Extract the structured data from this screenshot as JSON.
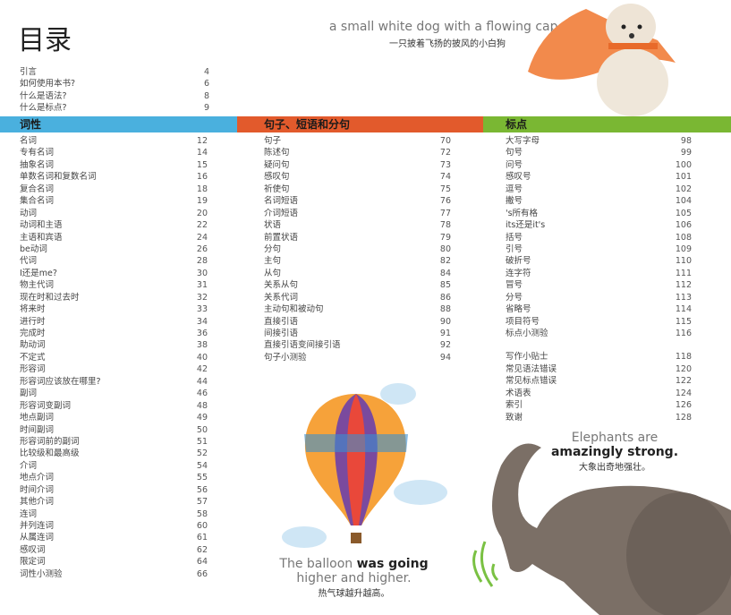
{
  "title": "目录",
  "intro": [
    {
      "t": "引言",
      "n": "4"
    },
    {
      "t": "如何使用本书?",
      "n": "6"
    },
    {
      "t": "什么是语法?",
      "n": "8"
    },
    {
      "t": "什么是标点?",
      "n": "9"
    }
  ],
  "sections": [
    {
      "heading": "词性",
      "color": "#4ab0de",
      "items": [
        {
          "t": "名词",
          "n": "12"
        },
        {
          "t": "专有名词",
          "n": "14"
        },
        {
          "t": "抽象名词",
          "n": "15"
        },
        {
          "t": "单数名词和复数名词",
          "n": "16"
        },
        {
          "t": "复合名词",
          "n": "18"
        },
        {
          "t": "集合名词",
          "n": "19"
        },
        {
          "t": "动词",
          "n": "20"
        },
        {
          "t": "动词和主语",
          "n": "22"
        },
        {
          "t": "主语和宾语",
          "n": "24"
        },
        {
          "t": "be动词",
          "n": "26"
        },
        {
          "t": "代词",
          "n": "28"
        },
        {
          "t": "I还是me?",
          "n": "30"
        },
        {
          "t": "物主代词",
          "n": "31"
        },
        {
          "t": "现在时和过去时",
          "n": "32"
        },
        {
          "t": "将来时",
          "n": "33"
        },
        {
          "t": "进行时",
          "n": "34"
        },
        {
          "t": "完成时",
          "n": "36"
        },
        {
          "t": "助动词",
          "n": "38"
        },
        {
          "t": "不定式",
          "n": "40"
        },
        {
          "t": "形容词",
          "n": "42"
        },
        {
          "t": "形容词应该放在哪里?",
          "n": "44"
        },
        {
          "t": "副词",
          "n": "46"
        },
        {
          "t": "形容词变副词",
          "n": "48"
        },
        {
          "t": "地点副词",
          "n": "49"
        },
        {
          "t": "时间副词",
          "n": "50"
        },
        {
          "t": "形容词前的副词",
          "n": "51"
        },
        {
          "t": "比较级和最高级",
          "n": "52"
        },
        {
          "t": "介词",
          "n": "54"
        },
        {
          "t": "地点介词",
          "n": "55"
        },
        {
          "t": "时间介词",
          "n": "56"
        },
        {
          "t": "其他介词",
          "n": "57"
        },
        {
          "t": "连词",
          "n": "58"
        },
        {
          "t": "并列连词",
          "n": "60"
        },
        {
          "t": "从属连词",
          "n": "61"
        },
        {
          "t": "感叹词",
          "n": "62"
        },
        {
          "t": "限定词",
          "n": "64"
        },
        {
          "t": "词性小测验",
          "n": "66"
        }
      ]
    },
    {
      "heading": "句子、短语和分句",
      "color": "#e25a2c",
      "items": [
        {
          "t": "句子",
          "n": "70"
        },
        {
          "t": "陈述句",
          "n": "72"
        },
        {
          "t": "疑问句",
          "n": "73"
        },
        {
          "t": "感叹句",
          "n": "74"
        },
        {
          "t": "祈使句",
          "n": "75"
        },
        {
          "t": "名词短语",
          "n": "76"
        },
        {
          "t": "介词短语",
          "n": "77"
        },
        {
          "t": "状语",
          "n": "78"
        },
        {
          "t": "前置状语",
          "n": "79"
        },
        {
          "t": "分句",
          "n": "80"
        },
        {
          "t": "主句",
          "n": "82"
        },
        {
          "t": "从句",
          "n": "84"
        },
        {
          "t": "关系从句",
          "n": "85"
        },
        {
          "t": "关系代词",
          "n": "86"
        },
        {
          "t": "主动句和被动句",
          "n": "88"
        },
        {
          "t": "直接引语",
          "n": "90"
        },
        {
          "t": "间接引语",
          "n": "91"
        },
        {
          "t": "直接引语变间接引语",
          "n": "92"
        },
        {
          "t": "句子小测验",
          "n": "94"
        }
      ]
    },
    {
      "heading": "标点",
      "color": "#7ab733",
      "items": [
        {
          "t": "大写字母",
          "n": "98"
        },
        {
          "t": "句号",
          "n": "99"
        },
        {
          "t": "问号",
          "n": "100"
        },
        {
          "t": "感叹号",
          "n": "101"
        },
        {
          "t": "逗号",
          "n": "102"
        },
        {
          "t": "撇号",
          "n": "104"
        },
        {
          "t": "'s所有格",
          "n": "105"
        },
        {
          "t": "its还是it's",
          "n": "106"
        },
        {
          "t": "括号",
          "n": "108"
        },
        {
          "t": "引号",
          "n": "109"
        },
        {
          "t": "破折号",
          "n": "110"
        },
        {
          "t": "连字符",
          "n": "111"
        },
        {
          "t": "冒号",
          "n": "112"
        },
        {
          "t": "分号",
          "n": "113"
        },
        {
          "t": "省略号",
          "n": "114"
        },
        {
          "t": "项目符号",
          "n": "115"
        },
        {
          "t": "标点小测验",
          "n": "116"
        }
      ],
      "extra": [
        {
          "t": "写作小贴士",
          "n": "118"
        },
        {
          "t": "常见语法错误",
          "n": "120"
        },
        {
          "t": "常见标点错误",
          "n": "122"
        },
        {
          "t": "术语表",
          "n": "124"
        },
        {
          "t": "索引",
          "n": "126"
        },
        {
          "t": "致谢",
          "n": "128"
        }
      ]
    }
  ],
  "captions": {
    "dog": {
      "en": "a small white dog with a flowing cape",
      "zh": "一只披着飞扬的披风的小白狗"
    },
    "elephant": {
      "en1": "Elephants are",
      "en2": "amazingly strong.",
      "zh": "大象出奇地强壮。"
    },
    "balloon": {
      "en1a": "The balloon ",
      "en1b": "was going",
      "en2": "higher and higher.",
      "zh": "热气球越升越高。"
    }
  }
}
